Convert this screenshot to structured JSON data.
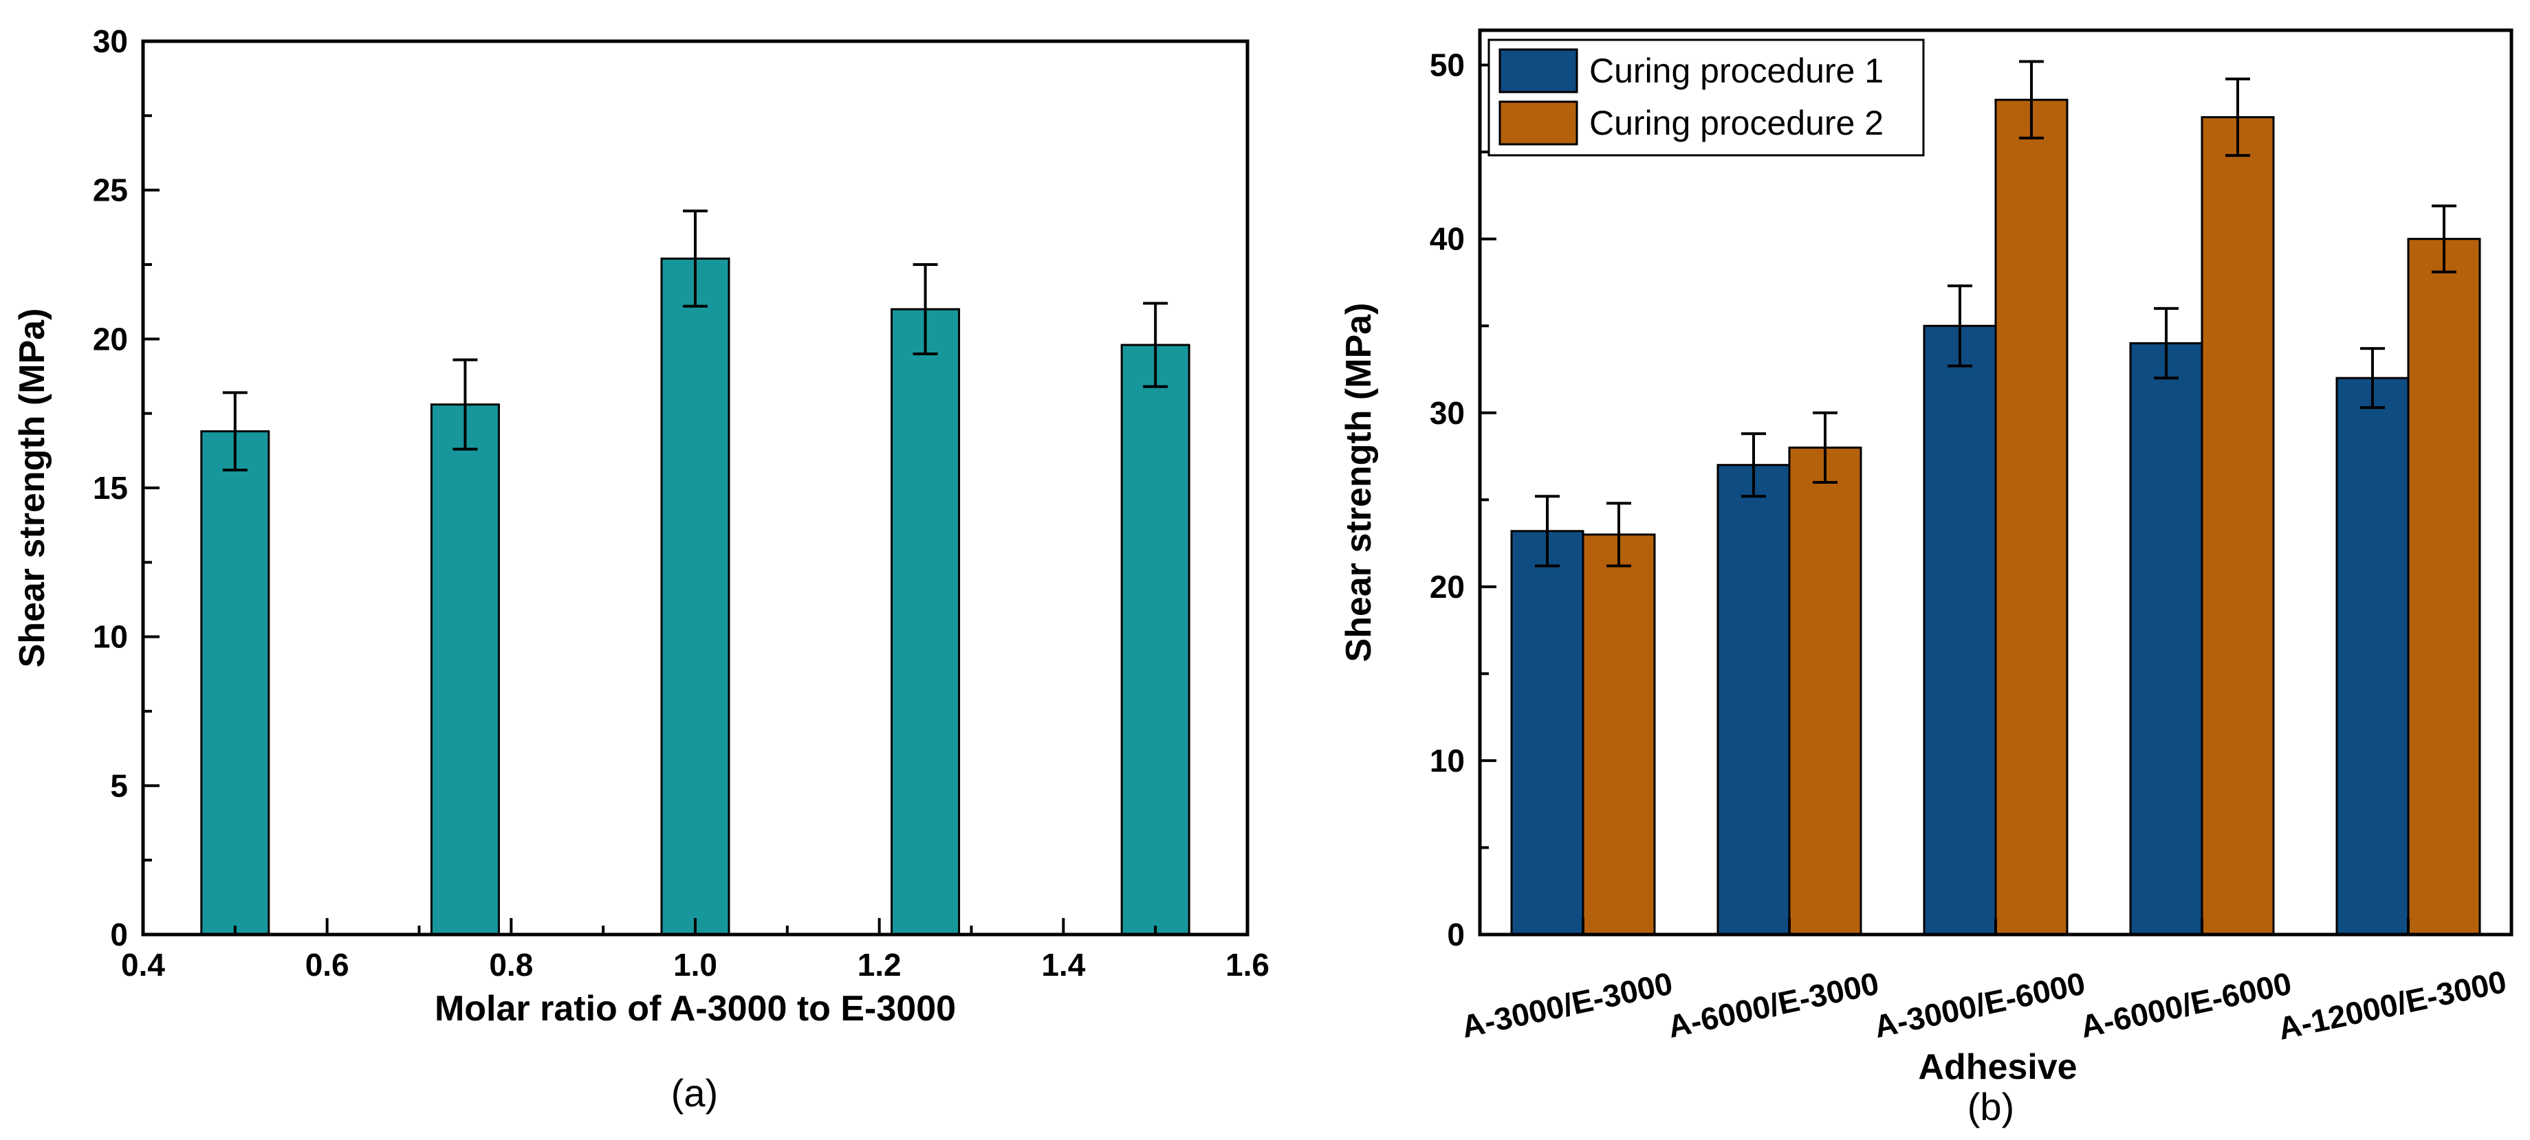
{
  "chart_data": [
    {
      "type": "bar",
      "panel_label": "(a)",
      "xlabel": "Molar ratio of A-3000 to E-3000",
      "ylabel": "Shear strength (MPa)",
      "xlim": [
        0.4,
        1.6
      ],
      "ylim": [
        0,
        30
      ],
      "xticks": [
        "0.4",
        "0.6",
        "0.8",
        "1.0",
        "1.2",
        "1.4",
        "1.6"
      ],
      "yticks": [
        "0",
        "5",
        "10",
        "15",
        "20",
        "25",
        "30"
      ],
      "x": [
        0.5,
        0.75,
        1.0,
        1.25,
        1.5
      ],
      "values": [
        16.9,
        17.8,
        22.7,
        21.0,
        19.8
      ],
      "errors": [
        1.3,
        1.5,
        1.6,
        1.5,
        1.4
      ],
      "color": "#17979b",
      "grid": false,
      "legend": "none"
    },
    {
      "type": "bar",
      "panel_label": "(b)",
      "xlabel": "Adhesive",
      "ylabel": "Shear strength (MPa)",
      "ylim": [
        0,
        52
      ],
      "yticks": [
        "0",
        "10",
        "20",
        "30",
        "40",
        "50"
      ],
      "categories": [
        "A-3000/E-3000",
        "A-6000/E-3000",
        "A-3000/E-6000",
        "A-6000/E-6000",
        "A-12000/E-3000"
      ],
      "series": [
        {
          "name": "Curing procedure 1",
          "color": "#0f4c81",
          "values": [
            23.2,
            27.0,
            35.0,
            34.0,
            32.0
          ],
          "errors": [
            2.0,
            1.8,
            2.3,
            2.0,
            1.7
          ]
        },
        {
          "name": "Curing procedure 2",
          "color": "#b5610c",
          "values": [
            23.0,
            28.0,
            48.0,
            47.0,
            40.0
          ],
          "errors": [
            1.8,
            2.0,
            2.2,
            2.2,
            1.9
          ]
        }
      ],
      "grid": false,
      "legend": "top-left"
    }
  ]
}
